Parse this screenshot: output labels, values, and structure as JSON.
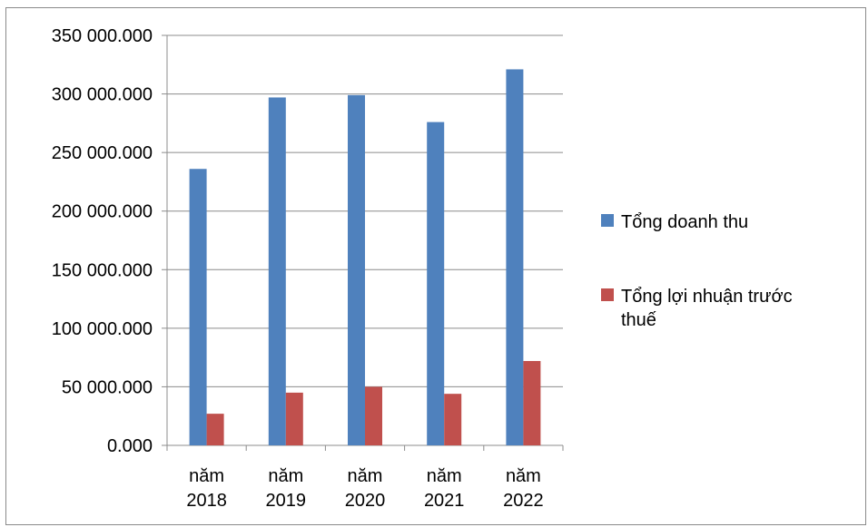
{
  "chart_data": {
    "type": "bar",
    "categories": [
      [
        "năm",
        "2018"
      ],
      [
        "năm",
        "2019"
      ],
      [
        "năm",
        "2020"
      ],
      [
        "năm",
        "2021"
      ],
      [
        "năm",
        "2022"
      ]
    ],
    "series": [
      {
        "name": "Tổng doanh thu",
        "color": "#4f81bd",
        "values": [
          236000,
          297000,
          299000,
          276000,
          321000
        ]
      },
      {
        "name": "Tổng lợi nhuận trước thuế",
        "color": "#c0504d",
        "values": [
          27000,
          45000,
          50000,
          44000,
          72000
        ]
      }
    ],
    "ylim": [
      0,
      350000
    ],
    "yticks": [
      0,
      50000,
      100000,
      150000,
      200000,
      250000,
      300000,
      350000
    ],
    "ytick_labels": [
      "0.000",
      "50 000.000",
      "100 000.000",
      "150 000.000",
      "200 000.000",
      "250 000.000",
      "300 000.000",
      "350 000.000"
    ],
    "legend": {
      "position": "right",
      "lines": [
        [
          "Tổng doanh thu"
        ],
        [
          "Tổng lợi nhuận trước",
          "thuế"
        ]
      ]
    },
    "grid": true,
    "grid_color": "#8c8c8c",
    "axis_color": "#8c8c8c"
  }
}
